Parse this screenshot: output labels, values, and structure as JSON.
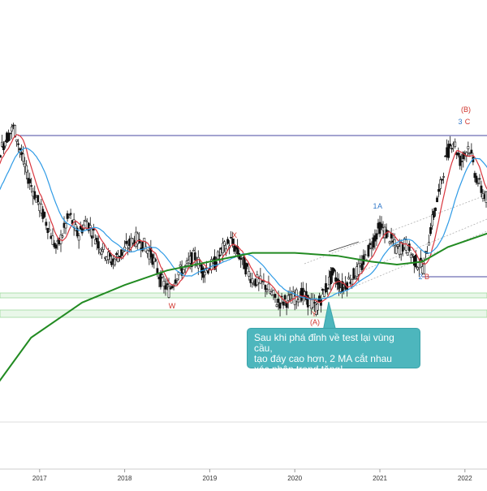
{
  "chart_data": {
    "type": "candlestick",
    "title": "",
    "xlabel": "",
    "ylabel": "",
    "x_ticks": [
      "2017",
      "2018",
      "2019",
      "2020",
      "2021",
      "2022"
    ],
    "grid": false,
    "legend": "none",
    "colors": {
      "candle": "#111111",
      "ma_fast": "#d9363e",
      "ma_mid": "#2f9be6",
      "ma_slow": "#228b22",
      "resistance": "#4a4aa0",
      "support_zone": "#9ed99e",
      "wave_red": "#d0342c",
      "wave_blue": "#2f77c8",
      "callout": "#4db6bd"
    },
    "wave_labels": [
      {
        "label": "W",
        "color": "red",
        "date": "2018-05"
      },
      {
        "label": "X",
        "color": "red",
        "date": "2019-03"
      },
      {
        "label": "Y",
        "color": "red",
        "date": "2020-03"
      },
      {
        "label": "(A)",
        "color": "red",
        "date": "2020-03"
      },
      {
        "label": "1",
        "color": "blue",
        "date": "2020-12"
      },
      {
        "label": "A",
        "color": "blue",
        "date": "2020-12"
      },
      {
        "label": "2",
        "color": "blue",
        "date": "2021-07"
      },
      {
        "label": "B",
        "color": "red",
        "date": "2021-07"
      },
      {
        "label": "3",
        "color": "blue",
        "date": "2021-12"
      },
      {
        "label": "C",
        "color": "red",
        "date": "2021-12"
      },
      {
        "label": "(B)",
        "color": "red",
        "date": "2021-12"
      }
    ],
    "annotations": [
      {
        "type": "horizontal_line",
        "name": "resistance",
        "from": "2016-09",
        "to": "2022-06"
      },
      {
        "type": "horizontal_line",
        "name": "wave-2-level",
        "from": "2021-07",
        "to": "2022-06"
      },
      {
        "type": "zone",
        "name": "support-zone-1"
      },
      {
        "type": "zone",
        "name": "support-zone-2"
      }
    ],
    "callout": {
      "lines": [
        "Sau khi phá đỉnh về test lại vùng cầu,",
        "tạo đáy cao hơn, 2 MA cắt nhau",
        "xác nhận trend tăng!"
      ],
      "points_to": "2020-06"
    }
  }
}
